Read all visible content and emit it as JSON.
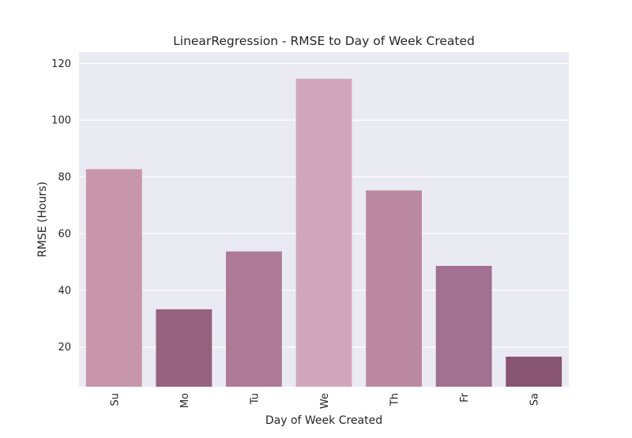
{
  "chart_data": {
    "type": "bar",
    "title": "LinearRegression - RMSE to Day of Week Created",
    "xlabel": "Day of Week Created",
    "ylabel": "RMSE (Hours)",
    "categories": [
      "Su",
      "Mo",
      "Tu",
      "We",
      "Th",
      "Fr",
      "Sa"
    ],
    "values": [
      82.7,
      33.3,
      53.7,
      114.6,
      75.2,
      48.6,
      16.6
    ],
    "ylim": [
      6,
      124
    ],
    "yticks": [
      20,
      40,
      60,
      80,
      100,
      120
    ],
    "grid": true,
    "legend": "none",
    "colors": {
      "background": "#eaeaf2",
      "grid": "#ffffff",
      "bars": [
        "#c896ab",
        "#95627e",
        "#ae7a95",
        "#d2a6ba",
        "#bb8aa0",
        "#a27090",
        "#885571"
      ]
    }
  }
}
